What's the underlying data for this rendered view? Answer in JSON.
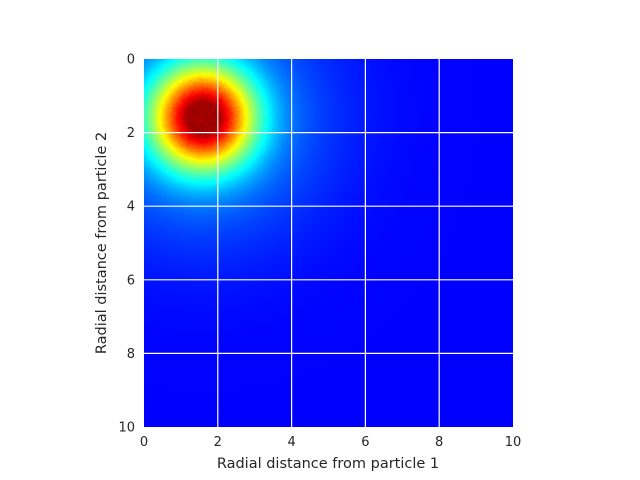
{
  "chart_data": {
    "type": "heatmap",
    "title": "",
    "xlabel": "Radial distance from particle 1",
    "ylabel": "Radial distance from particle 2",
    "xlim": [
      0,
      10
    ],
    "ylim": [
      0,
      10
    ],
    "y_inverted": true,
    "x_ticks": [
      "0",
      "2",
      "4",
      "6",
      "8",
      "10"
    ],
    "y_ticks": [
      "0",
      "2",
      "4",
      "6",
      "8",
      "10"
    ],
    "grid": true,
    "colormap": "jet",
    "peak": {
      "x": 1.6,
      "y": 1.6
    },
    "spread": {
      "sigma": 0.85,
      "tail_power": 3
    },
    "background_color": "#00007f",
    "grid_color": "#ffffff"
  }
}
